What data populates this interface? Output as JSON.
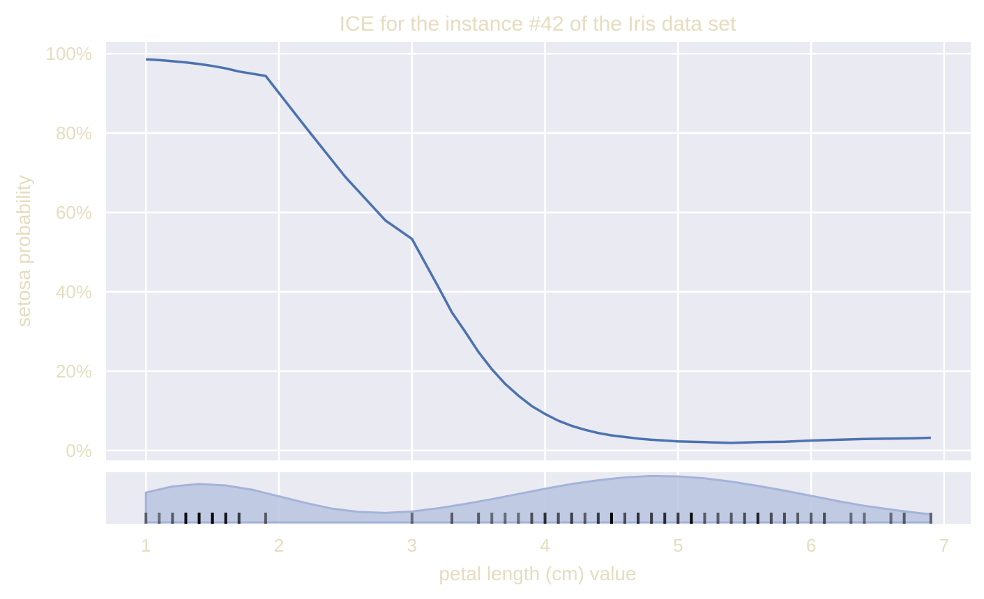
{
  "chart_data": {
    "type": "line",
    "title": "ICE for the instance #42 of the Iris data set",
    "xlabel": "petal length (cm) value",
    "ylabel": "setosa probability",
    "xlim": [
      0.7,
      7.2
    ],
    "ylim": [
      -2.5,
      103.0
    ],
    "grid": true,
    "xticks": [
      1,
      2,
      3,
      4,
      5,
      6,
      7
    ],
    "yticks": [
      0,
      20,
      40,
      60,
      80,
      100
    ],
    "ytick_labels": [
      "0%",
      "20%",
      "40%",
      "60%",
      "80%",
      "100%"
    ],
    "series": [
      {
        "x": [
          1.0,
          1.1,
          1.2,
          1.3,
          1.4,
          1.5,
          1.6,
          1.7,
          1.9,
          2.2,
          2.5,
          2.8,
          3.0,
          3.1,
          3.2,
          3.3,
          3.4,
          3.5,
          3.6,
          3.7,
          3.8,
          3.9,
          4.0,
          4.1,
          4.2,
          4.3,
          4.4,
          4.5,
          4.6,
          4.7,
          4.8,
          4.9,
          5.0,
          5.2,
          5.4,
          5.6,
          5.8,
          6.0,
          6.2,
          6.4,
          6.6,
          6.8,
          6.9
        ],
        "values": [
          98.6,
          98.4,
          98.1,
          97.8,
          97.4,
          96.9,
          96.3,
          95.5,
          94.4,
          81.5,
          68.9,
          58.0,
          53.3,
          47.2,
          41.1,
          34.8,
          29.9,
          24.8,
          20.5,
          16.8,
          13.8,
          11.2,
          9.2,
          7.5,
          6.2,
          5.2,
          4.4,
          3.8,
          3.4,
          3.0,
          2.7,
          2.5,
          2.3,
          2.1,
          1.9,
          2.1,
          2.2,
          2.5,
          2.7,
          2.9,
          3.0,
          3.1,
          3.2
        ]
      }
    ],
    "rug": {
      "values": [
        1.0,
        1.1,
        1.2,
        1.3,
        1.4,
        1.5,
        1.6,
        1.7,
        1.9,
        3.0,
        3.3,
        3.5,
        3.6,
        3.7,
        3.8,
        3.9,
        4.0,
        4.1,
        4.2,
        4.3,
        4.4,
        4.5,
        4.6,
        4.7,
        4.8,
        4.9,
        5.0,
        5.1,
        5.2,
        5.3,
        5.4,
        5.5,
        5.6,
        5.7,
        5.8,
        5.9,
        6.0,
        6.1,
        6.3,
        6.4,
        6.6,
        6.7,
        6.9
      ],
      "counts": [
        1,
        1,
        2,
        7,
        13,
        13,
        7,
        4,
        2,
        1,
        2,
        2,
        1,
        1,
        1,
        3,
        5,
        3,
        4,
        2,
        4,
        8,
        3,
        5,
        4,
        5,
        4,
        8,
        2,
        2,
        2,
        3,
        6,
        3,
        3,
        2,
        2,
        3,
        1,
        1,
        1,
        2,
        1
      ]
    },
    "density": {
      "x": [
        1.0,
        1.2,
        1.4,
        1.6,
        1.8,
        2.0,
        2.2,
        2.4,
        2.6,
        2.8,
        3.0,
        3.2,
        3.4,
        3.6,
        3.8,
        4.0,
        4.2,
        4.4,
        4.6,
        4.8,
        5.0,
        5.2,
        5.4,
        5.6,
        5.8,
        6.0,
        6.2,
        6.4,
        6.6,
        6.8,
        6.9
      ],
      "values": [
        0.63,
        0.76,
        0.81,
        0.78,
        0.69,
        0.55,
        0.41,
        0.29,
        0.22,
        0.2,
        0.23,
        0.3,
        0.39,
        0.49,
        0.6,
        0.71,
        0.81,
        0.89,
        0.95,
        0.98,
        0.97,
        0.93,
        0.86,
        0.77,
        0.67,
        0.56,
        0.45,
        0.35,
        0.27,
        0.2,
        0.17
      ]
    },
    "colors": {
      "line": "#4c72b0",
      "density_fill": "#b8c4e0",
      "panel_bg": "#eaeaf2",
      "grid": "#ffffff",
      "text": "#e6dcbf"
    }
  }
}
